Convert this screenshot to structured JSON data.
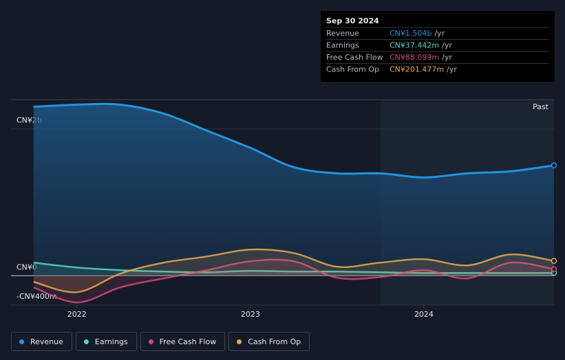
{
  "chart_data": {
    "type": "line",
    "x": [
      2021.75,
      2022.0,
      2022.25,
      2022.5,
      2022.75,
      2023.0,
      2023.25,
      2023.5,
      2023.75,
      2024.0,
      2024.25,
      2024.5,
      2024.75
    ],
    "xlim": [
      2021.62,
      2024.75
    ],
    "xticks": [
      2022,
      2023,
      2024
    ],
    "ylim": [
      -400000000,
      2400000000
    ],
    "yticks": [
      {
        "value": 2000000000,
        "label": "CN¥2b"
      },
      {
        "value": 0,
        "label": "CN¥0"
      },
      {
        "value": -400000000,
        "label": "-CN¥400m"
      }
    ],
    "grid": true,
    "regions": [
      {
        "label": "Past",
        "from": 2023.75
      }
    ],
    "series": [
      {
        "name": "Revenue",
        "color": "#2394df",
        "values": [
          2303000000,
          2331000000,
          2331000000,
          2210000000,
          1976000000,
          1742000000,
          1479000000,
          1395000000,
          1395000000,
          1339000000,
          1395000000,
          1423000000,
          1504000000
        ]
      },
      {
        "name": "Earnings",
        "color": "#58d6c6",
        "values": [
          178000000,
          112000000,
          75000000,
          56000000,
          47000000,
          66000000,
          56000000,
          56000000,
          47000000,
          37000000,
          37000000,
          37000000,
          37442000
        ]
      },
      {
        "name": "Free Cash Flow",
        "color": "#d0497f",
        "values": [
          -159000000,
          -365000000,
          -159000000,
          -37000000,
          75000000,
          197000000,
          197000000,
          -28000000,
          -19000000,
          75000000,
          -37000000,
          178000000,
          88099000
        ]
      },
      {
        "name": "Cash From Op",
        "color": "#e8a84f",
        "values": [
          -84000000,
          -225000000,
          28000000,
          178000000,
          262000000,
          356000000,
          309000000,
          122000000,
          178000000,
          225000000,
          140000000,
          290000000,
          201477000
        ]
      }
    ],
    "tooltip": {
      "date": "Sep 30 2024",
      "rows": [
        {
          "name": "Revenue",
          "value": "CN¥1.504b",
          "unit": "/yr"
        },
        {
          "name": "Earnings",
          "value": "CN¥37.442m",
          "unit": "/yr"
        },
        {
          "name": "Free Cash Flow",
          "value": "CN¥88.099m",
          "unit": "/yr"
        },
        {
          "name": "Cash From Op",
          "value": "CN¥201.477m",
          "unit": "/yr"
        }
      ]
    }
  }
}
